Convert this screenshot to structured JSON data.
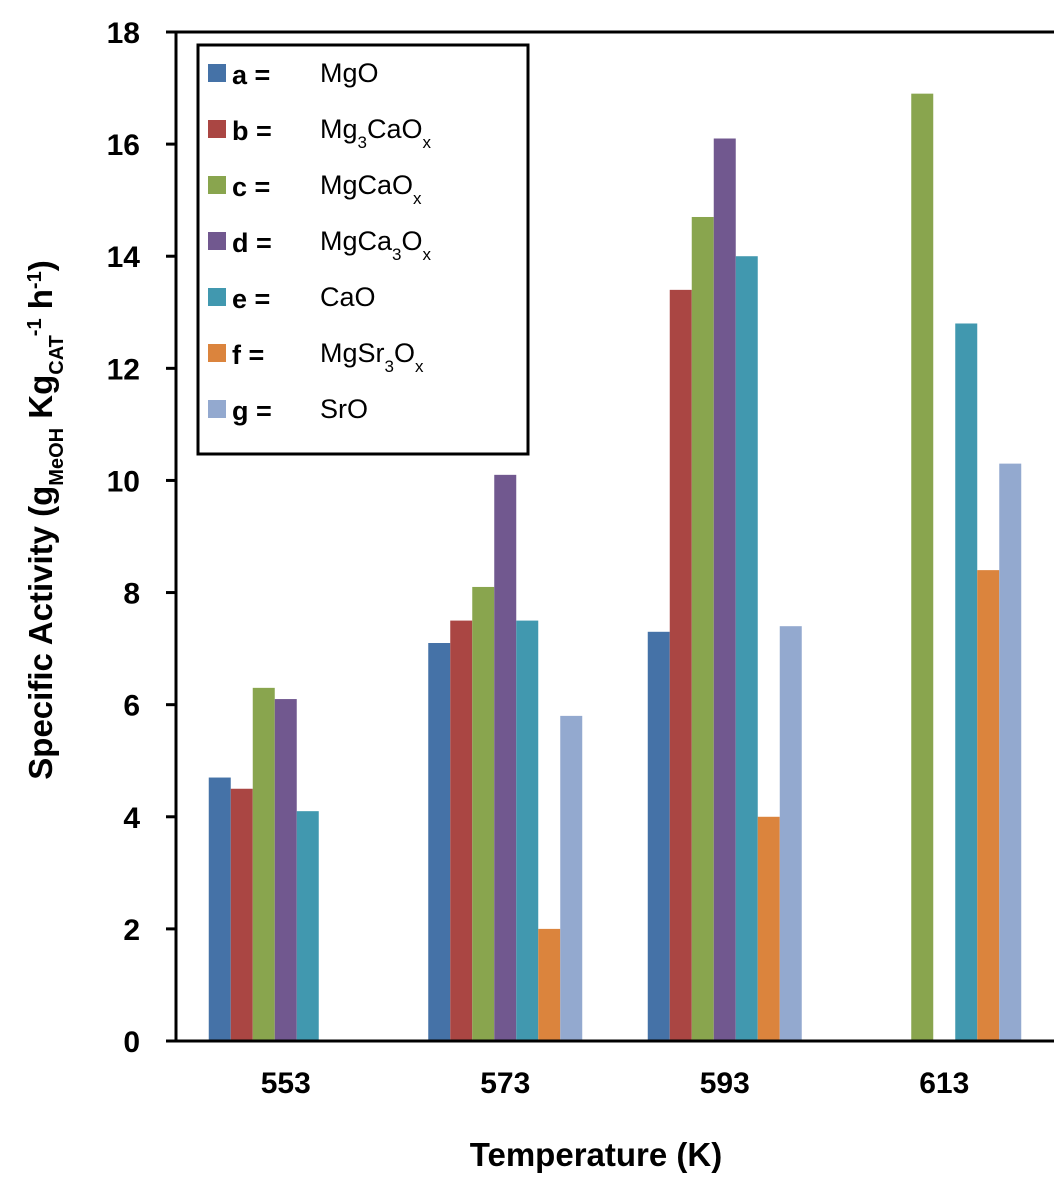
{
  "chart_data": {
    "type": "bar",
    "categories": [
      "553",
      "573",
      "593",
      "613"
    ],
    "xlabel": "Temperature (K)",
    "ylabel": {
      "parts": [
        {
          "text": "Specific Activity (g",
          "style": "normal"
        },
        {
          "text": "MeOH",
          "style": "sub"
        },
        {
          "text": " Kg",
          "style": "normal"
        },
        {
          "text": "CAT",
          "style": "sub"
        },
        {
          "text": "-1",
          "style": "sup"
        },
        {
          "text": " h",
          "style": "normal"
        },
        {
          "text": "-1",
          "style": "sup"
        },
        {
          "text": ")",
          "style": "normal"
        }
      ]
    },
    "ylim": [
      0,
      18
    ],
    "yticks": [
      "0",
      "2",
      "4",
      "6",
      "8",
      "10",
      "12",
      "14",
      "16",
      "18"
    ],
    "grid": false,
    "legend_position": "top-left",
    "series": [
      {
        "key": "a",
        "label_parts": [
          {
            "text": "MgO",
            "style": "normal"
          }
        ],
        "color": "#4572A7",
        "values": [
          4.7,
          7.1,
          7.3,
          null
        ]
      },
      {
        "key": "b",
        "label_parts": [
          {
            "text": "Mg",
            "style": "normal"
          },
          {
            "text": "3",
            "style": "sub"
          },
          {
            "text": "CaO",
            "style": "normal"
          },
          {
            "text": "x",
            "style": "sub"
          }
        ],
        "color": "#AA4643",
        "values": [
          4.5,
          7.5,
          13.4,
          null
        ]
      },
      {
        "key": "c",
        "label_parts": [
          {
            "text": "MgCaO",
            "style": "normal"
          },
          {
            "text": "x",
            "style": "sub"
          }
        ],
        "color": "#89A54E",
        "values": [
          6.3,
          8.1,
          14.7,
          16.9
        ]
      },
      {
        "key": "d",
        "label_parts": [
          {
            "text": "MgCa",
            "style": "normal"
          },
          {
            "text": "3",
            "style": "sub"
          },
          {
            "text": "O",
            "style": "normal"
          },
          {
            "text": "x",
            "style": "sub"
          }
        ],
        "color": "#71588F",
        "values": [
          6.1,
          10.1,
          16.1,
          null
        ]
      },
      {
        "key": "e",
        "label_parts": [
          {
            "text": "CaO",
            "style": "normal"
          }
        ],
        "color": "#4198AF",
        "values": [
          4.1,
          7.5,
          14.0,
          12.8
        ]
      },
      {
        "key": "f",
        "label_parts": [
          {
            "text": "MgSr",
            "style": "normal"
          },
          {
            "text": "3",
            "style": "sub"
          },
          {
            "text": "O",
            "style": "normal"
          },
          {
            "text": "x",
            "style": "sub"
          }
        ],
        "color": "#DB843D",
        "values": [
          null,
          2.0,
          4.0,
          8.4
        ]
      },
      {
        "key": "g",
        "label_parts": [
          {
            "text": "SrO",
            "style": "normal"
          }
        ],
        "color": "#93A9CF",
        "values": [
          null,
          5.8,
          7.4,
          10.3
        ]
      }
    ]
  }
}
